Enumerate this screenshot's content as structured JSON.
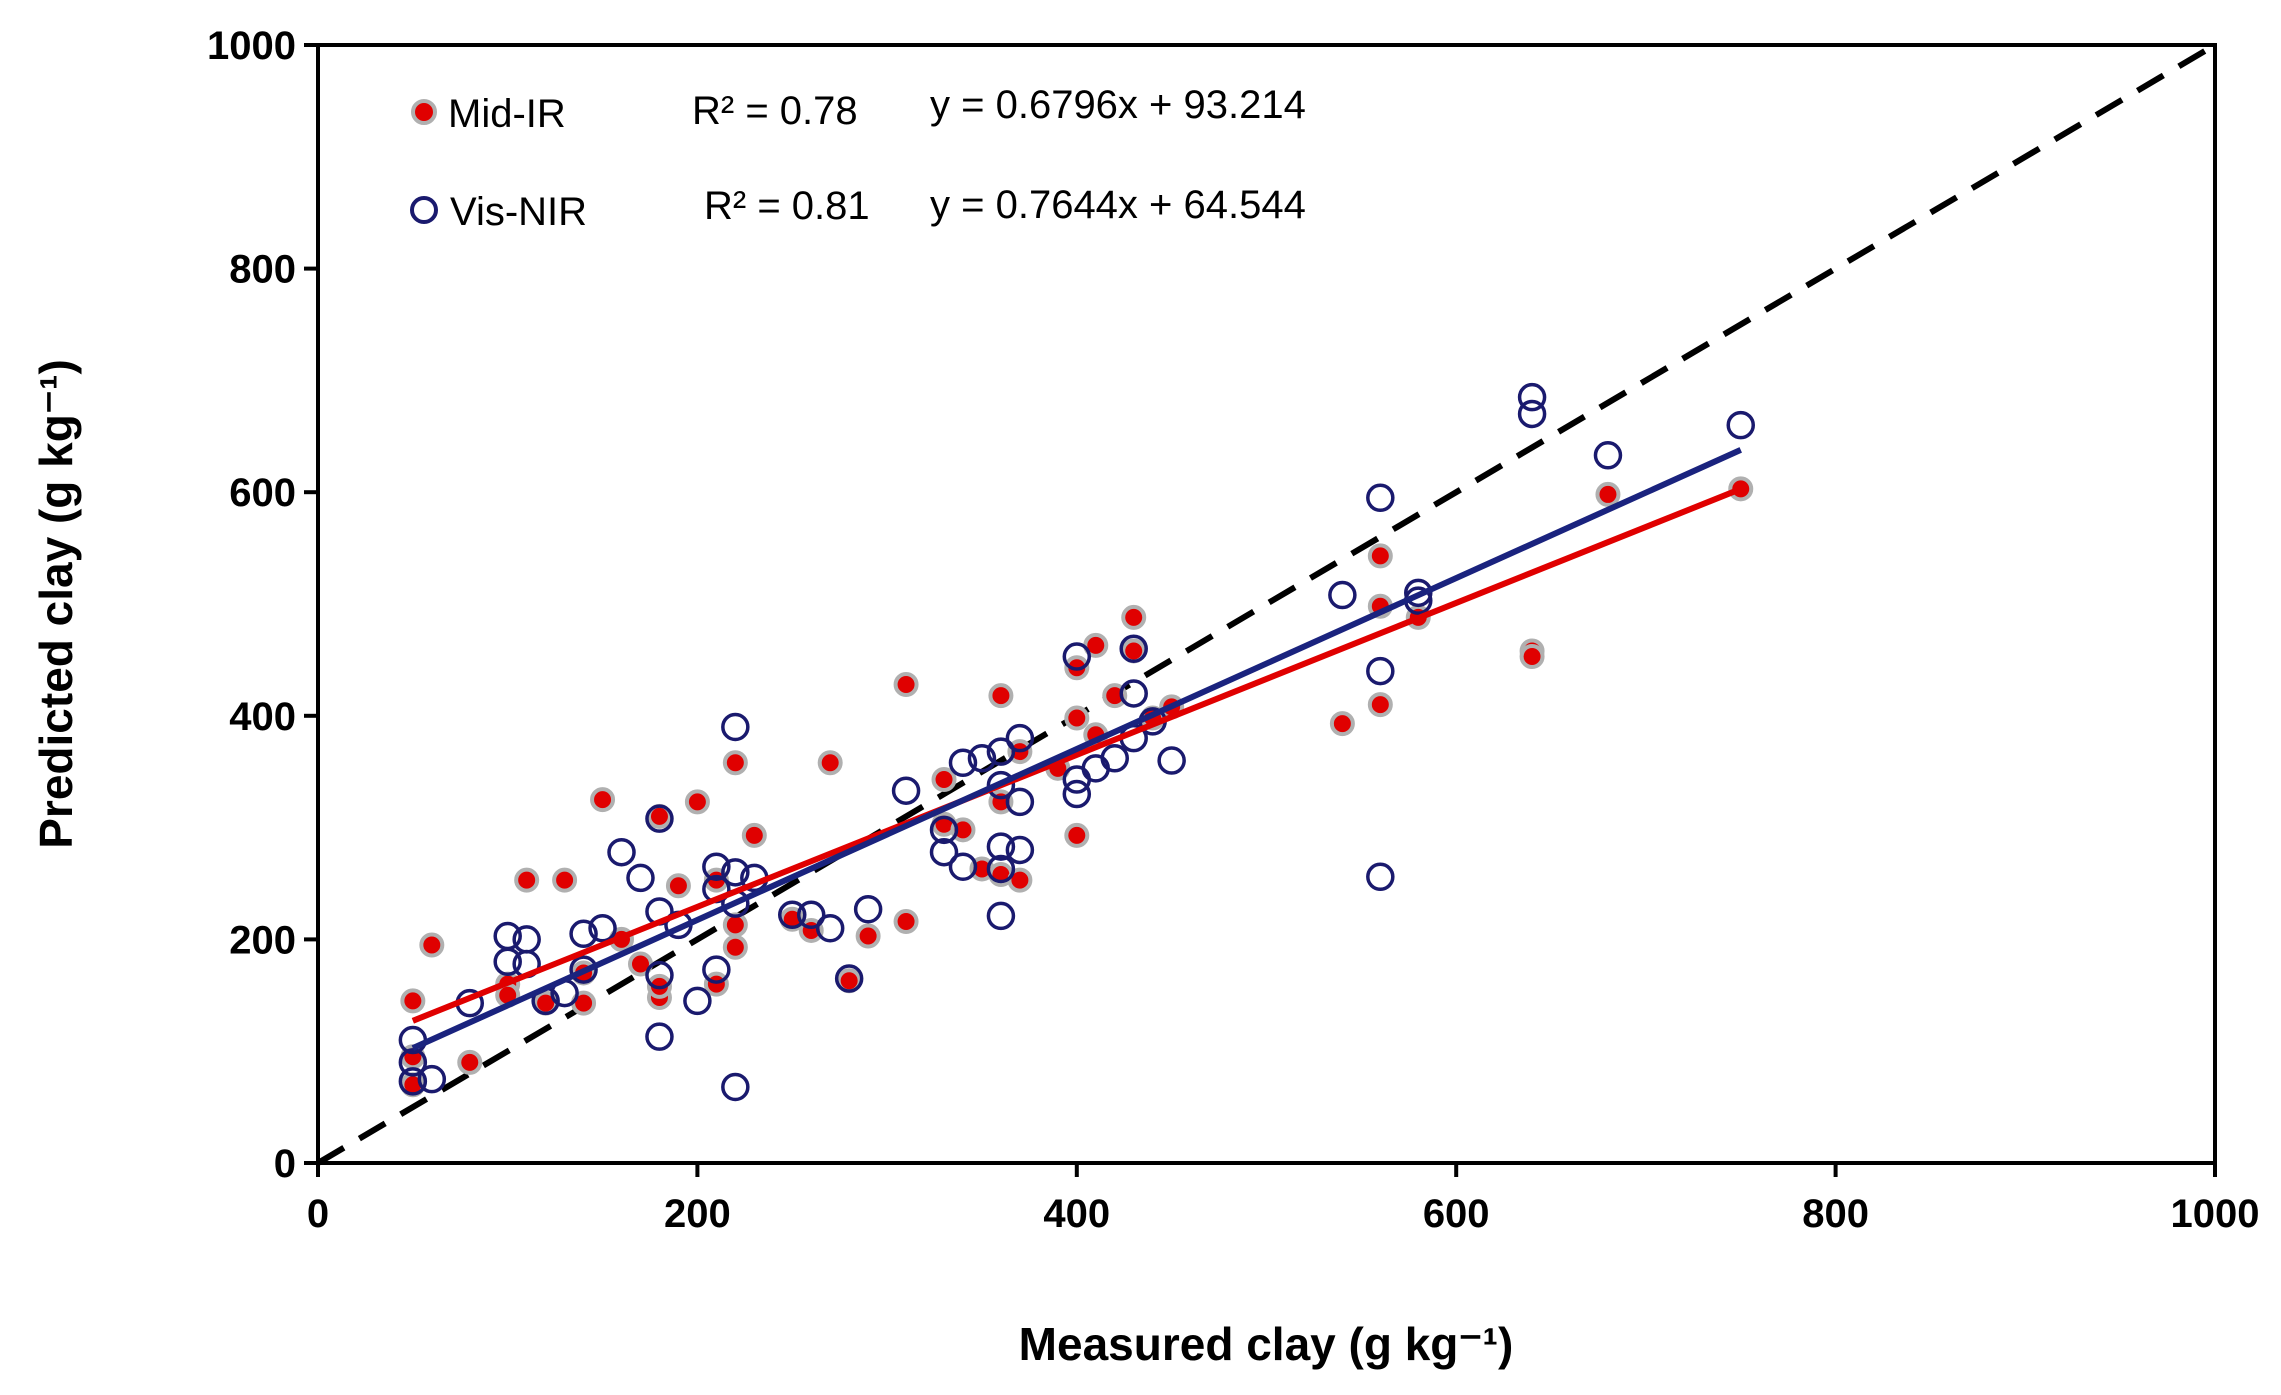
{
  "chart_data": {
    "type": "scatter",
    "xlabel": "Measured clay (g kg⁻¹)",
    "ylabel": "Predicted clay (g kg⁻¹)",
    "xlim": [
      0,
      1000
    ],
    "ylim": [
      0,
      1000
    ],
    "xticks": [
      "0",
      "200",
      "400",
      "600",
      "800",
      "1000"
    ],
    "yticks": [
      "0",
      "200",
      "400",
      "600",
      "800",
      "1000"
    ],
    "grid": false,
    "legend_position": "top-left",
    "reference_line": {
      "name": "1:1 line",
      "style": "dashed",
      "color": "#000000",
      "from": [
        0,
        0
      ],
      "to": [
        1000,
        1000
      ]
    },
    "series": [
      {
        "name": "Mid-IR",
        "marker": "filled-circle",
        "color": "#e00000",
        "r2_label": "R² = 0.78",
        "equation_label": "y = 0.6796x + 93.214",
        "slope": 0.6796,
        "intercept": 93.214,
        "fit_range": [
          50,
          750
        ],
        "points": [
          [
            50,
            145
          ],
          [
            50,
            95
          ],
          [
            50,
            70
          ],
          [
            60,
            195
          ],
          [
            80,
            90
          ],
          [
            100,
            160
          ],
          [
            100,
            150
          ],
          [
            110,
            253
          ],
          [
            120,
            143
          ],
          [
            130,
            253
          ],
          [
            140,
            143
          ],
          [
            140,
            170
          ],
          [
            150,
            325
          ],
          [
            160,
            200
          ],
          [
            170,
            178
          ],
          [
            180,
            148
          ],
          [
            180,
            158
          ],
          [
            180,
            310
          ],
          [
            200,
            323
          ],
          [
            190,
            248
          ],
          [
            210,
            160
          ],
          [
            210,
            253
          ],
          [
            220,
            193
          ],
          [
            220,
            358
          ],
          [
            220,
            213
          ],
          [
            230,
            293
          ],
          [
            250,
            218
          ],
          [
            260,
            208
          ],
          [
            270,
            358
          ],
          [
            280,
            163
          ],
          [
            290,
            203
          ],
          [
            310,
            428
          ],
          [
            310,
            216
          ],
          [
            330,
            303
          ],
          [
            330,
            343
          ],
          [
            340,
            298
          ],
          [
            350,
            263
          ],
          [
            360,
            418
          ],
          [
            360,
            323
          ],
          [
            360,
            258
          ],
          [
            370,
            253
          ],
          [
            370,
            368
          ],
          [
            390,
            353
          ],
          [
            400,
            293
          ],
          [
            400,
            398
          ],
          [
            400,
            443
          ],
          [
            410,
            463
          ],
          [
            410,
            383
          ],
          [
            420,
            418
          ],
          [
            430,
            488
          ],
          [
            430,
            458
          ],
          [
            440,
            398
          ],
          [
            450,
            408
          ],
          [
            540,
            393
          ],
          [
            560,
            543
          ],
          [
            560,
            498
          ],
          [
            560,
            410
          ],
          [
            580,
            488
          ],
          [
            640,
            458
          ],
          [
            640,
            453
          ],
          [
            680,
            598
          ],
          [
            750,
            603
          ]
        ]
      },
      {
        "name": "Vis-NIR",
        "marker": "open-circle",
        "color": "#1a1a6e",
        "r2_label": "R² = 0.81",
        "equation_label": "y = 0.7644x + 64.544",
        "slope": 0.7644,
        "intercept": 64.544,
        "fit_range": [
          50,
          750
        ],
        "points": [
          [
            50,
            110
          ],
          [
            50,
            90
          ],
          [
            50,
            73
          ],
          [
            60,
            75
          ],
          [
            80,
            143
          ],
          [
            100,
            203
          ],
          [
            100,
            180
          ],
          [
            110,
            200
          ],
          [
            110,
            178
          ],
          [
            120,
            145
          ],
          [
            130,
            152
          ],
          [
            140,
            205
          ],
          [
            140,
            173
          ],
          [
            150,
            210
          ],
          [
            160,
            278
          ],
          [
            170,
            255
          ],
          [
            180,
            308
          ],
          [
            180,
            225
          ],
          [
            180,
            168
          ],
          [
            180,
            113
          ],
          [
            190,
            213
          ],
          [
            200,
            145
          ],
          [
            210,
            265
          ],
          [
            210,
            245
          ],
          [
            210,
            173
          ],
          [
            220,
            390
          ],
          [
            220,
            260
          ],
          [
            220,
            232
          ],
          [
            220,
            68
          ],
          [
            230,
            255
          ],
          [
            250,
            222
          ],
          [
            260,
            222
          ],
          [
            270,
            210
          ],
          [
            280,
            165
          ],
          [
            290,
            227
          ],
          [
            310,
            333
          ],
          [
            330,
            298
          ],
          [
            330,
            278
          ],
          [
            340,
            358
          ],
          [
            340,
            265
          ],
          [
            350,
            362
          ],
          [
            360,
            368
          ],
          [
            360,
            338
          ],
          [
            360,
            283
          ],
          [
            360,
            263
          ],
          [
            360,
            221
          ],
          [
            370,
            380
          ],
          [
            370,
            323
          ],
          [
            370,
            280
          ],
          [
            400,
            453
          ],
          [
            400,
            343
          ],
          [
            400,
            330
          ],
          [
            410,
            353
          ],
          [
            420,
            362
          ],
          [
            430,
            460
          ],
          [
            430,
            420
          ],
          [
            430,
            380
          ],
          [
            440,
            395
          ],
          [
            450,
            360
          ],
          [
            540,
            508
          ],
          [
            560,
            595
          ],
          [
            560,
            440
          ],
          [
            560,
            256
          ],
          [
            580,
            510
          ],
          [
            580,
            503
          ],
          [
            640,
            685
          ],
          [
            640,
            670
          ],
          [
            680,
            633
          ],
          [
            750,
            660
          ]
        ]
      }
    ]
  }
}
